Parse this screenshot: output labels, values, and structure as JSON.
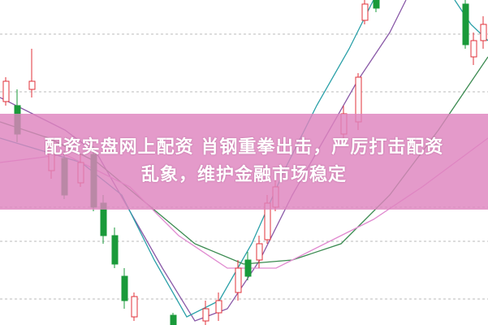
{
  "headline": {
    "line1": "配资实盘网上配资 肖钢重拳出击，严厉打击配资",
    "line2": "乱象，维护金融市场稳定"
  },
  "colors": {
    "banner": "#de84be",
    "candle_up": "#e0313a",
    "candle_down": "#1a9a3a",
    "ma_purple": "#8a5aa8",
    "ma_teal": "#2aa0a8",
    "ma_green": "#3a8a50",
    "ma_pink": "#e08ad0"
  }
}
